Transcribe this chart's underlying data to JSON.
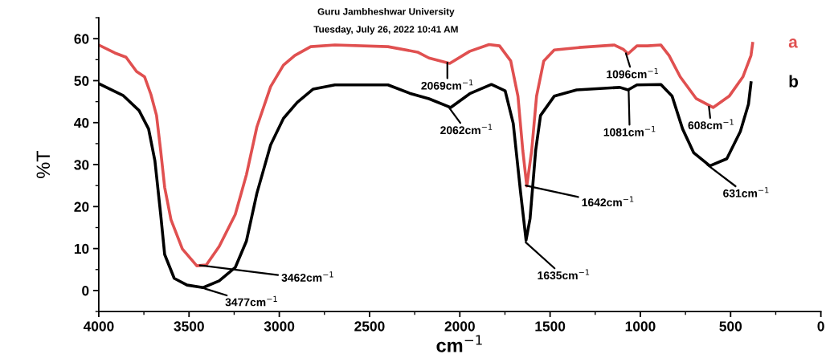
{
  "chart_data": {
    "type": "line",
    "title": "Guru Jambheshwar University",
    "subtitle": "Tuesday, July 26, 2022 10:41 AM",
    "xlabel": "cm$^{−1}$",
    "ylabel": "%T",
    "xlim": [
      4000,
      0
    ],
    "xticks": [
      4000,
      3500,
      3000,
      2500,
      2000,
      1500,
      1000,
      500,
      0
    ],
    "ylim": [
      -5,
      65
    ],
    "yticks": [
      0,
      10,
      20,
      30,
      40,
      50,
      60
    ],
    "grid": false,
    "marker": "none",
    "line_style": "solid",
    "series": [
      {
        "name": "a",
        "color": "#e05050",
        "x": [
          4000,
          3911,
          3849,
          3791,
          3746,
          3711,
          3680,
          3657,
          3635,
          3600,
          3537,
          3457,
          3404,
          3333,
          3244,
          3182,
          3124,
          3048,
          2977,
          2914,
          2826,
          2692,
          2398,
          2234,
          2171,
          2056,
          1945,
          1838,
          1780,
          1718,
          1678,
          1651,
          1629,
          1602,
          1575,
          1535,
          1477,
          1340,
          1144,
          1095,
          1068,
          1019,
          961,
          886,
          841,
          779,
          690,
          597,
          508,
          432,
          387,
          378
        ],
        "values": [
          58.5,
          56.6,
          55.6,
          52.2,
          50.9,
          46.7,
          41.7,
          33.3,
          24.6,
          16.9,
          9.9,
          5.9,
          6.1,
          10.5,
          18.1,
          27.6,
          39.0,
          48.6,
          53.7,
          56.0,
          58.1,
          58.5,
          58.1,
          56.8,
          55.4,
          54.1,
          57.0,
          58.6,
          58.3,
          54.7,
          46.3,
          33.3,
          24.9,
          33.3,
          46.3,
          54.7,
          57.3,
          57.9,
          58.5,
          57.5,
          56.4,
          58.3,
          58.3,
          58.5,
          56.0,
          50.9,
          45.7,
          43.6,
          46.3,
          50.9,
          56.0,
          58.9
        ]
      },
      {
        "name": "b",
        "color": "#000000",
        "x": [
          4000,
          3866,
          3777,
          3724,
          3689,
          3657,
          3635,
          3582,
          3511,
          3422,
          3333,
          3244,
          3182,
          3124,
          3048,
          2977,
          2901,
          2812,
          2692,
          2398,
          2278,
          2171,
          2051,
          1945,
          1825,
          1749,
          1704,
          1664,
          1633,
          1611,
          1580,
          1553,
          1477,
          1353,
          1113,
          1068,
          1019,
          886,
          824,
          766,
          704,
          615,
          521,
          446,
          401,
          387
        ],
        "values": [
          49.3,
          46.5,
          42.9,
          38.5,
          30.9,
          18.1,
          8.6,
          2.9,
          1.3,
          0.7,
          2.3,
          5.5,
          11.8,
          23.2,
          34.7,
          41.0,
          44.8,
          48.0,
          49.0,
          49.0,
          47.0,
          45.7,
          43.6,
          46.9,
          49.1,
          47.6,
          39.8,
          23.6,
          12.0,
          17.1,
          33.3,
          41.7,
          46.3,
          47.8,
          48.4,
          47.8,
          49.0,
          49.1,
          46.3,
          38.5,
          32.8,
          29.7,
          31.4,
          37.9,
          44.4,
          49.5
        ]
      }
    ],
    "annotations": [
      {
        "text": "3462cm$^{−1}$",
        "x": 3440,
        "y": 6
      },
      {
        "text": "3477cm$^{−1}$",
        "x": 3430,
        "y": 0.7
      },
      {
        "text": "2069cm$^{−1}$",
        "x": 2069,
        "y": 54.3
      },
      {
        "text": "2062cm$^{−1}$",
        "x": 2062,
        "y": 43.7
      },
      {
        "text": "1642cm$^{−1}$",
        "x": 1635,
        "y": 25
      },
      {
        "text": "1635cm$^{−1}$",
        "x": 1635,
        "y": 11.5
      },
      {
        "text": "1096cm$^{−1}$",
        "x": 1080,
        "y": 56.5
      },
      {
        "text": "1081cm$^{−1}$",
        "x": 1065,
        "y": 48
      },
      {
        "text": "608cm$^{−1}$",
        "x": 620,
        "y": 43.8
      },
      {
        "text": "631cm$^{−1}$",
        "x": 630,
        "y": 30
      }
    ]
  }
}
